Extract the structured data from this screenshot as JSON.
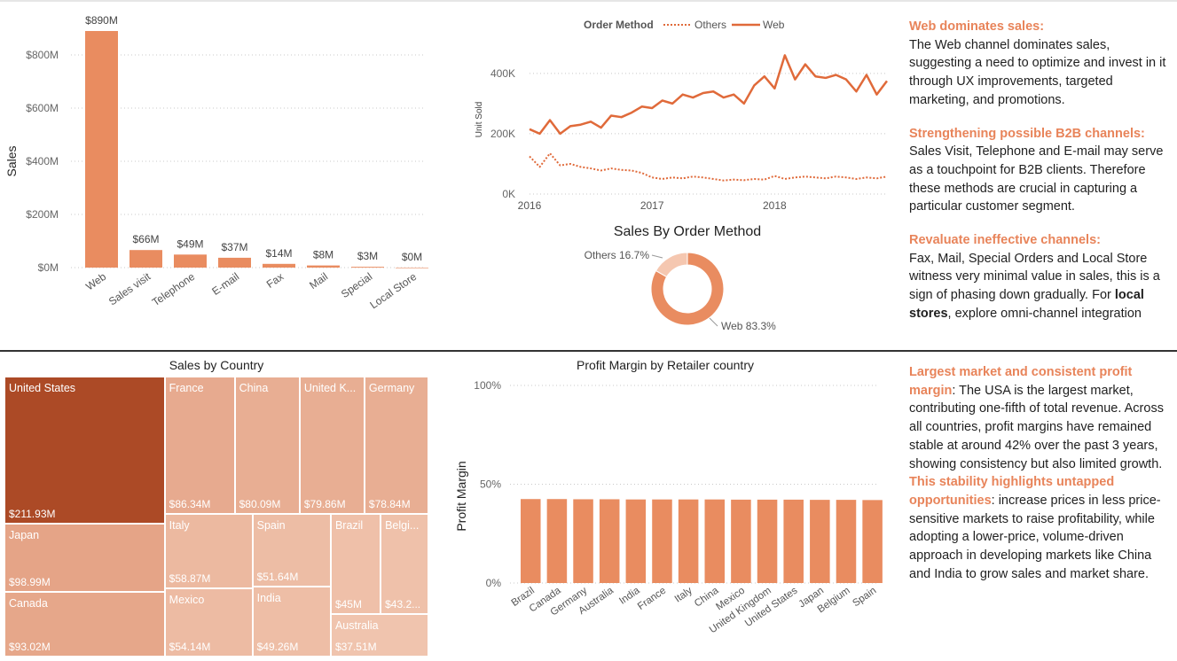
{
  "chart_data": [
    {
      "type": "bar",
      "title": "",
      "ylabel": "Sales",
      "categories": [
        "Web",
        "Sales visit",
        "Telephone",
        "E-mail",
        "Fax",
        "Mail",
        "Special",
        "Local Store"
      ],
      "values": [
        890,
        66,
        49,
        37,
        14,
        8,
        3,
        0
      ],
      "data_labels": [
        "$890M",
        "$66M",
        "$49M",
        "$37M",
        "$14M",
        "$8M",
        "$3M",
        "$0M"
      ],
      "yticks": [
        "$0M",
        "$200M",
        "$400M",
        "$600M",
        "$800M"
      ],
      "ytick_values": [
        0,
        200,
        400,
        600,
        800
      ],
      "ylim": [
        0,
        900
      ],
      "color": "#e98c60"
    },
    {
      "type": "line",
      "legend_title": "Order Method",
      "legend_placement": "top",
      "ylabel": "Unit Sold",
      "x_ticks": [
        "2016",
        "2017",
        "2018"
      ],
      "yticks": [
        "0K",
        "200K",
        "400K"
      ],
      "ytick_values": [
        0,
        200,
        400
      ],
      "ylim": [
        0,
        470
      ],
      "x": [
        "2016-01",
        "2016-02",
        "2016-03",
        "2016-04",
        "2016-05",
        "2016-06",
        "2016-07",
        "2016-08",
        "2016-09",
        "2016-10",
        "2016-11",
        "2016-12",
        "2017-01",
        "2017-02",
        "2017-03",
        "2017-04",
        "2017-05",
        "2017-06",
        "2017-07",
        "2017-08",
        "2017-09",
        "2017-10",
        "2017-11",
        "2017-12",
        "2018-01",
        "2018-02",
        "2018-03",
        "2018-04",
        "2018-05",
        "2018-06",
        "2018-07",
        "2018-08",
        "2018-09",
        "2018-10",
        "2018-11",
        "2018-12"
      ],
      "series": [
        {
          "name": "Others",
          "style": "dotted",
          "color": "#e06a3a",
          "values": [
            125,
            90,
            135,
            95,
            100,
            90,
            85,
            78,
            85,
            80,
            78,
            70,
            55,
            50,
            55,
            52,
            58,
            55,
            50,
            45,
            48,
            46,
            50,
            48,
            60,
            50,
            55,
            58,
            55,
            52,
            58,
            55,
            50,
            55,
            52,
            58
          ]
        },
        {
          "name": "Web",
          "style": "solid",
          "color": "#e06a3a",
          "values": [
            215,
            200,
            245,
            200,
            225,
            230,
            240,
            220,
            260,
            255,
            270,
            290,
            285,
            310,
            300,
            330,
            320,
            335,
            340,
            320,
            330,
            300,
            360,
            390,
            350,
            460,
            380,
            430,
            390,
            385,
            395,
            380,
            340,
            395,
            330,
            375
          ]
        }
      ]
    },
    {
      "type": "pie",
      "title": "Sales By Order Method",
      "labels": [
        "Others",
        "Web"
      ],
      "values": [
        16.7,
        83.3
      ],
      "data_labels": [
        "Others 16.7%",
        "Web 83.3%"
      ],
      "colors": [
        "#f5c7b0",
        "#e98c60"
      ]
    },
    {
      "type": "heatmap",
      "title": "Sales by Country",
      "labels": [
        "United States",
        "Japan",
        "Canada",
        "France",
        "China",
        "United K...",
        "Germany",
        "Italy",
        "Spain",
        "Brazil",
        "Belgi...",
        "Mexico",
        "India",
        "Australia"
      ],
      "values": [
        211.93,
        98.99,
        93.02,
        86.34,
        80.09,
        79.86,
        78.84,
        58.87,
        51.64,
        45,
        43.2,
        54.14,
        49.26,
        37.51
      ],
      "data_labels": [
        "$211.93M",
        "$98.99M",
        "$93.02M",
        "$86.34M",
        "$80.09M",
        "$79.86M",
        "$78.84M",
        "$58.87M",
        "$51.64M",
        "$45M",
        "$43.2...",
        "$54.14M",
        "$49.26M",
        "$37.51M"
      ]
    },
    {
      "type": "bar",
      "title": "Profit Margin by Retailer country",
      "ylabel": "Profit Margin",
      "categories": [
        "Brazil",
        "Canada",
        "Germany",
        "Australia",
        "India",
        "France",
        "Italy",
        "China",
        "Mexico",
        "United Kingdom",
        "United States",
        "Japan",
        "Belgium",
        "Spain"
      ],
      "values": [
        42.5,
        42.5,
        42.4,
        42.4,
        42.3,
        42.3,
        42.3,
        42.3,
        42.2,
        42.2,
        42.2,
        42.1,
        42.1,
        42.0
      ],
      "yticks": [
        "0%",
        "50%",
        "100%"
      ],
      "ytick_values": [
        0,
        50,
        100
      ],
      "ylim": [
        0,
        100
      ],
      "color": "#e98c60"
    }
  ],
  "insights_top": [
    {
      "heading": "Web dominates sales:",
      "text": "The Web channel dominates sales, suggesting a need to optimize and invest in it through UX improvements, targeted marketing, and promotions."
    },
    {
      "heading": "Strengthening possible B2B channels:",
      "text": "Sales Visit, Telephone and E-mail may serve as a touchpoint for B2B clients. Therefore these methods are crucial in capturing a particular customer segment."
    },
    {
      "heading": "Revaluate ineffective channels:",
      "text": "Fax, Mail, Special Orders and Local Store witness very minimal value in sales, this is a sign of phasing down gradually. For ",
      "bold": "local stores",
      "tail": ", explore omni-channel integration"
    }
  ],
  "insights_bottom": {
    "heading1": "Largest market and consistent profit margin",
    "text1": ": The USA is the largest market, contributing one-fifth of total revenue. Across all countries, profit margins have remained stable at around 42% over the past 3 years, showing consistency but also limited growth.",
    "heading2": "This stability highlights untapped opportunities",
    "text2": ": increase prices in less price-sensitive markets to raise profitability, while adopting a lower-price, volume-driven approach in developing markets like China and India to grow sales and market share."
  }
}
